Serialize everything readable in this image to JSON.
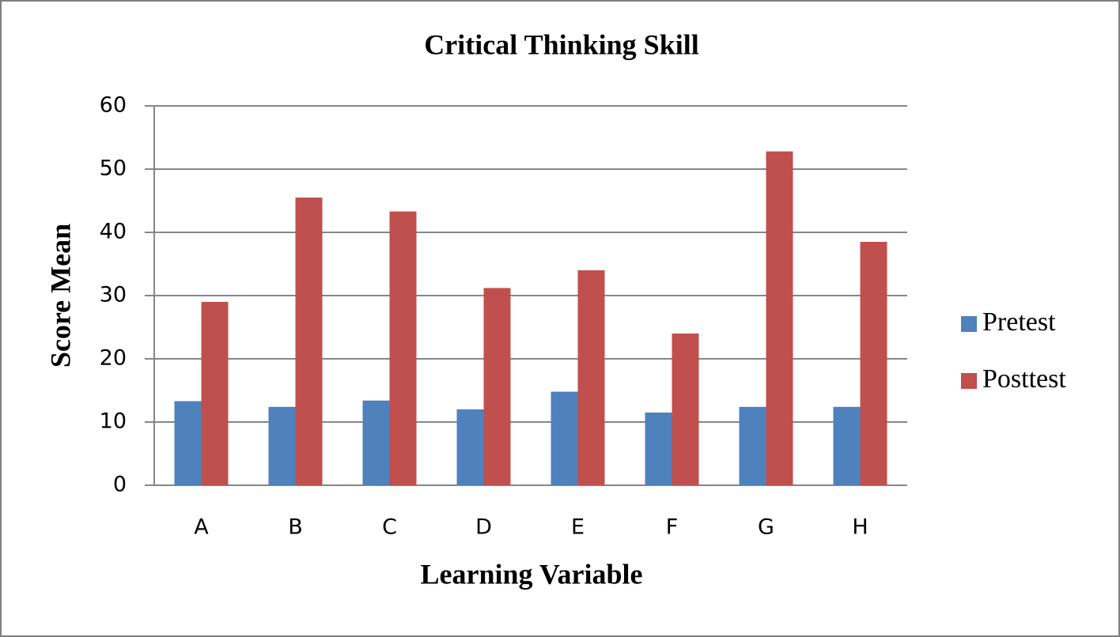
{
  "chart_data": {
    "type": "bar",
    "title": "Critical Thinking  Skill",
    "x_label": "Learning Variable",
    "y_label": "Score Mean",
    "categories": [
      "A",
      "B",
      "C",
      "D",
      "E",
      "F",
      "G",
      "H"
    ],
    "series": [
      {
        "name": "Pretest",
        "color": "#4f81bd",
        "values": [
          13.3,
          12.4,
          13.4,
          12,
          14.8,
          11.5,
          12.4,
          12.4
        ]
      },
      {
        "name": "Posttest",
        "color": "#c0504d",
        "values": [
          29,
          45.5,
          43.3,
          31.2,
          34,
          24,
          52.8,
          38.5
        ]
      }
    ],
    "ylim": [
      0,
      60
    ],
    "yticks": [
      0,
      10,
      20,
      30,
      40,
      50,
      60
    ],
    "grid": true,
    "legend": "right"
  }
}
